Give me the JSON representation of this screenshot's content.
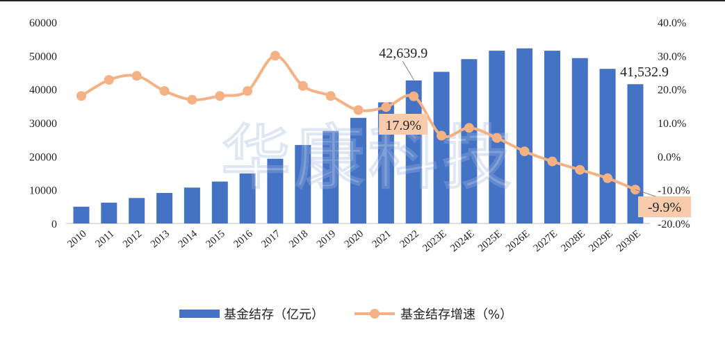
{
  "chart_data": {
    "type": "bar",
    "categories": [
      "2010",
      "2011",
      "2012",
      "2013",
      "2014",
      "2015",
      "2016",
      "2017",
      "2018",
      "2019",
      "2020",
      "2021",
      "2022",
      "2023E",
      "2024E",
      "2025E",
      "2026E",
      "2027E",
      "2028E",
      "2029E",
      "2030E"
    ],
    "series": [
      {
        "name": "基金结存（亿元）",
        "type": "bar",
        "axis": "left",
        "color": "#4472C4",
        "values": [
          5000,
          6200,
          7600,
          9100,
          10700,
          12500,
          14900,
          19300,
          23400,
          27600,
          31500,
          36100,
          42639.9,
          45200,
          49000,
          51500,
          52200,
          51500,
          49300,
          46100,
          41532.9
        ]
      },
      {
        "name": "基金结存增速（%）",
        "type": "line",
        "axis": "right",
        "color": "#F4B183",
        "values": [
          18.0,
          22.8,
          24.0,
          19.5,
          16.9,
          18.0,
          19.5,
          30.0,
          21.0,
          18.0,
          13.8,
          14.7,
          17.9,
          6.2,
          8.5,
          5.5,
          1.5,
          -1.5,
          -4.0,
          -6.5,
          -9.9
        ]
      }
    ],
    "y_left": {
      "min": 0,
      "max": 60000,
      "ticks": [
        "0",
        "10000",
        "20000",
        "30000",
        "40000",
        "50000",
        "60000"
      ]
    },
    "y_right": {
      "min": -20,
      "max": 40,
      "ticks": [
        "-20.0%",
        "-10.0%",
        "0.0%",
        "10.0%",
        "20.0%",
        "30.0%",
        "40.0%"
      ]
    },
    "annotations": {
      "bar_2022": "42,639.9",
      "bar_2030E": "41,532.9",
      "line_2022": "17.9%",
      "line_2030E": "-9.9%"
    },
    "legend_position": "bottom",
    "grid": false,
    "title": "",
    "xlabel": "",
    "ylabel": ""
  },
  "watermark": "华康科技"
}
